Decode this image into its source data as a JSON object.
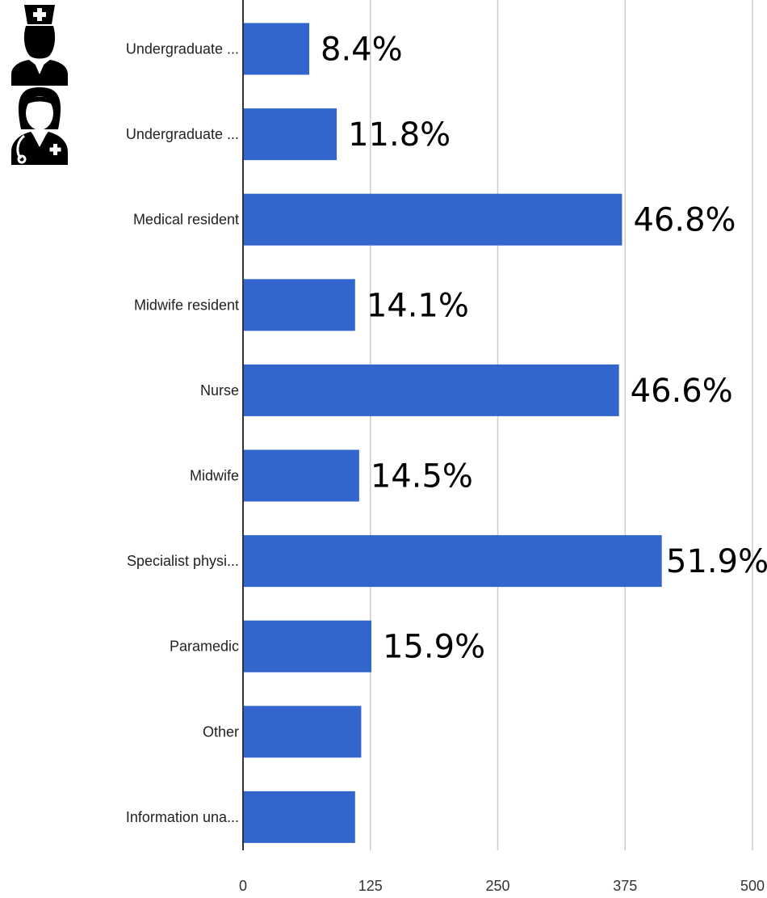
{
  "chart_data": {
    "type": "bar",
    "orientation": "horizontal",
    "categories": [
      "Undergraduate ...",
      "Undergraduate ...",
      "Medical resident",
      "Midwife resident",
      "Nurse",
      "Midwife",
      "Specialist physi...",
      "Paramedic",
      "Other",
      "Information una..."
    ],
    "values": [
      65,
      92,
      372,
      110,
      369,
      114,
      411,
      126,
      116,
      110
    ],
    "percent_labels": [
      "8.4%",
      "11.8%",
      "46.8%",
      "14.1%",
      "46.6%",
      "14.5%",
      "51.9%",
      "15.9%",
      "",
      ""
    ],
    "x_ticks": [
      "0",
      "125",
      "250",
      "375",
      "500"
    ],
    "xlim": [
      0,
      500
    ],
    "grid": true,
    "bar_color": "#3366cc",
    "icons": [
      "nurse-icon",
      "doctor-icon"
    ]
  }
}
